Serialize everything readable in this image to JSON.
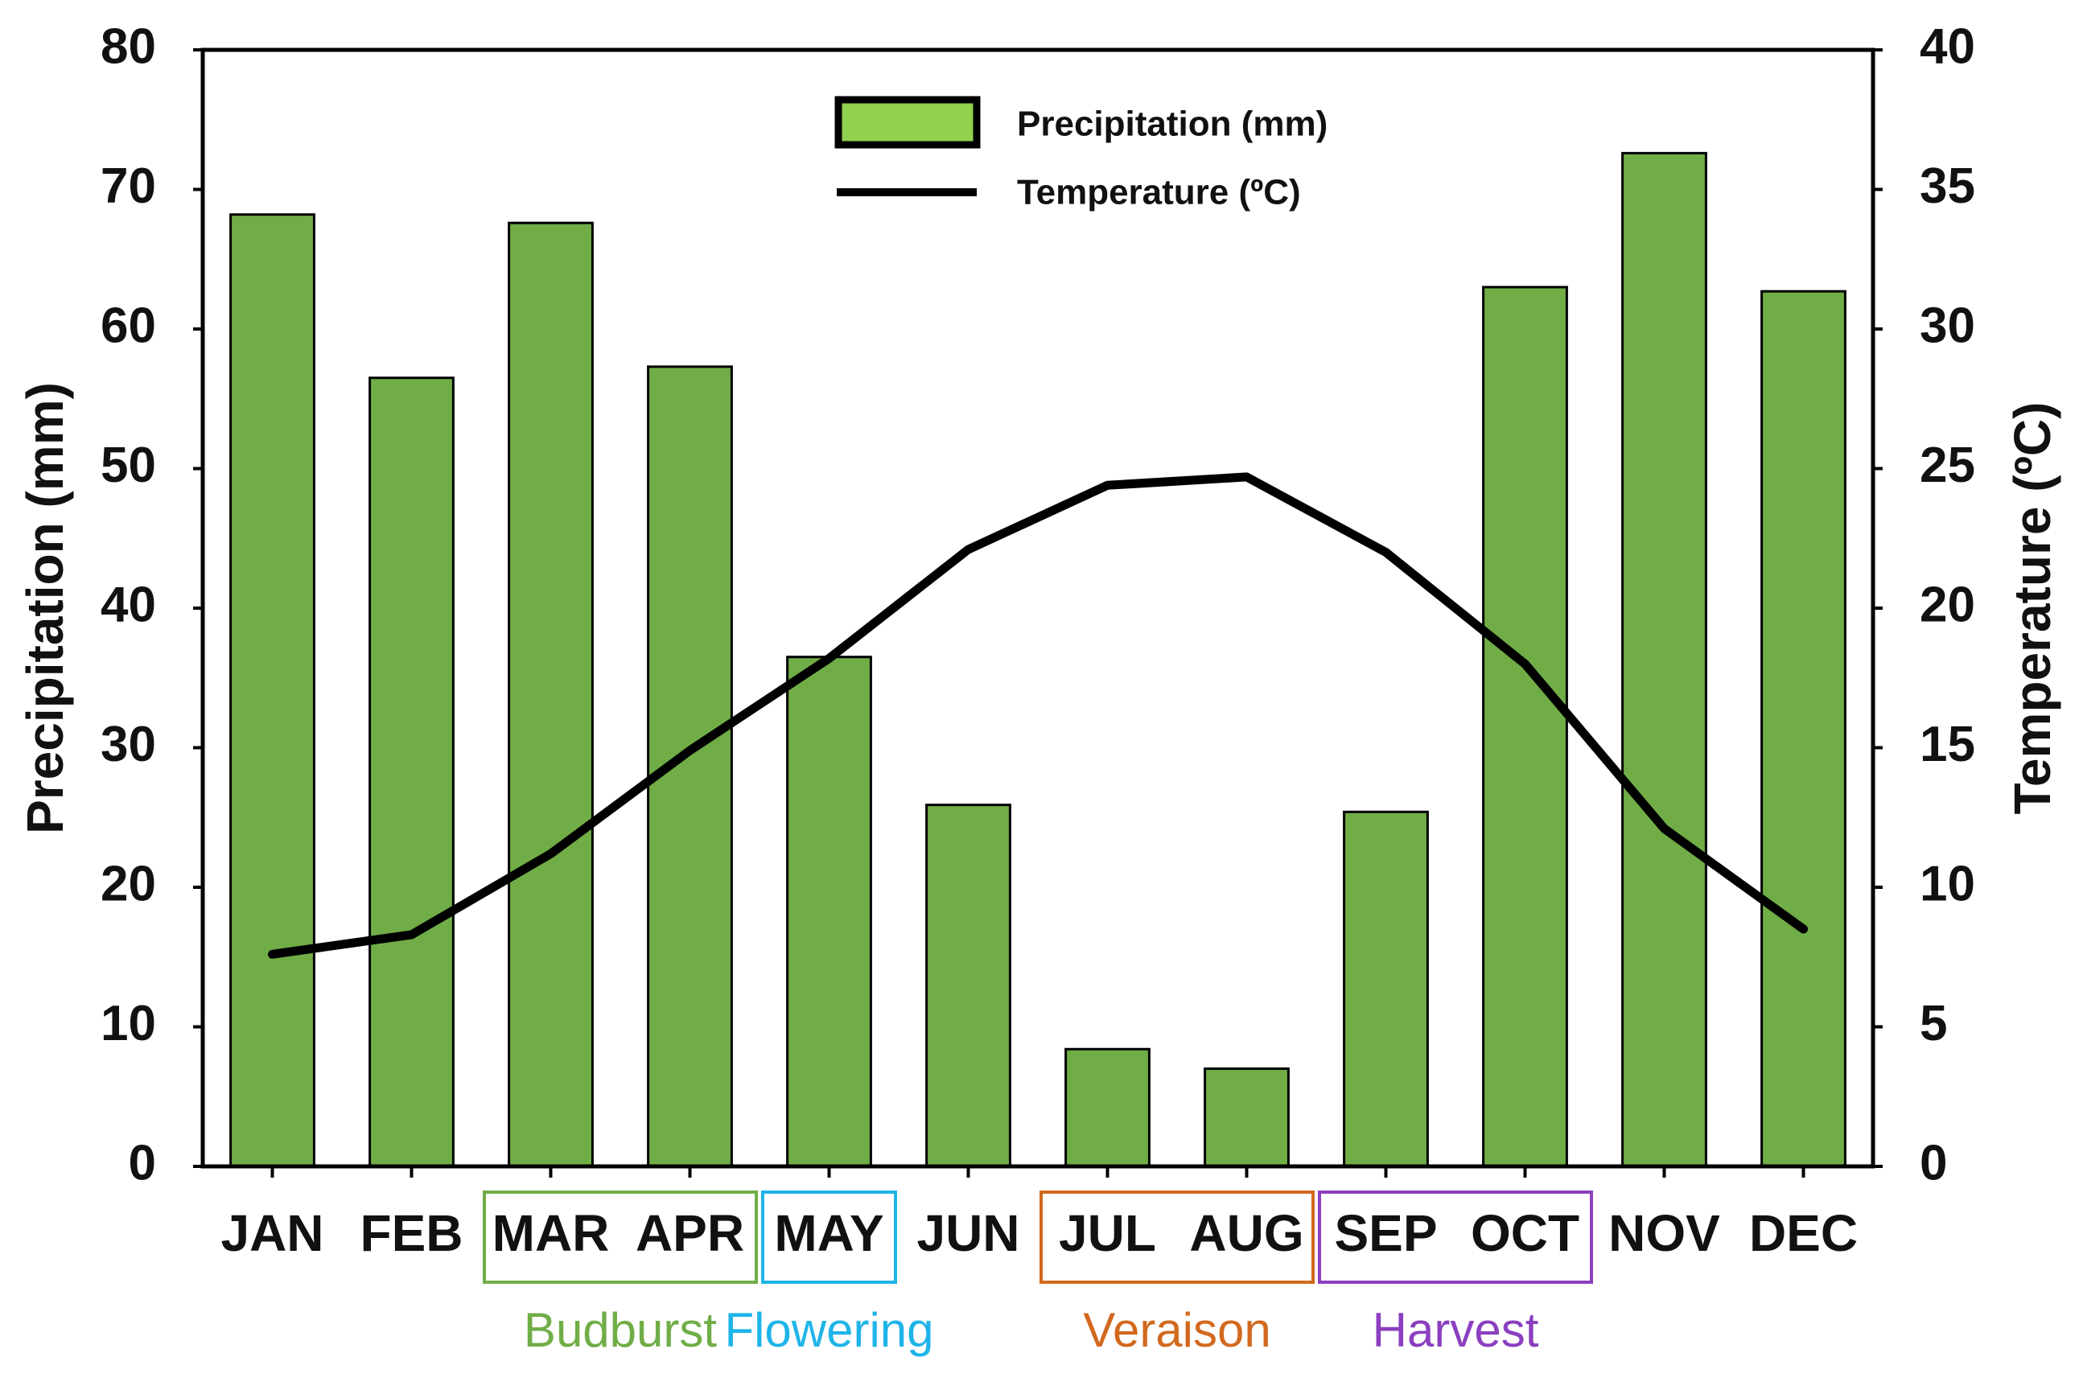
{
  "chart_data": {
    "type": "bar",
    "categories": [
      "JAN",
      "FEB",
      "MAR",
      "APR",
      "MAY",
      "JUN",
      "JUL",
      "AUG",
      "SEP",
      "OCT",
      "NOV",
      "DEC"
    ],
    "series": [
      {
        "name": "Precipitation (mm)",
        "type": "bar",
        "axis": "left",
        "color": "#70ad47",
        "values": [
          68.2,
          56.5,
          67.6,
          57.3,
          36.5,
          25.9,
          8.4,
          7.0,
          25.4,
          63.0,
          72.6,
          62.7
        ]
      },
      {
        "name": "Temperature (ºC)",
        "type": "line",
        "axis": "right",
        "color": "#000000",
        "values": [
          7.6,
          8.3,
          11.2,
          14.9,
          18.2,
          22.1,
          24.4,
          24.7,
          22.0,
          18.0,
          12.1,
          8.5
        ]
      }
    ],
    "ylabel": "Precipitation (mm)",
    "ylim": [
      0,
      80
    ],
    "yticks": [
      "0",
      "10",
      "20",
      "30",
      "40",
      "50",
      "60",
      "70",
      "80"
    ],
    "y2label": "Temperature (ºC)",
    "y2lim": [
      0,
      40
    ],
    "y2ticks": [
      "0",
      "5",
      "10",
      "15",
      "20",
      "25",
      "30",
      "35",
      "40"
    ],
    "grid": false,
    "legend_position": "top-center",
    "phases": [
      {
        "label": "Budburst",
        "months": [
          "MAR",
          "APR"
        ],
        "color": "#70ad47"
      },
      {
        "label": "Flowering",
        "months": [
          "MAY"
        ],
        "color": "#1fb4e8"
      },
      {
        "label": "Veraison",
        "months": [
          "JUL",
          "AUG"
        ],
        "color": "#d2691e"
      },
      {
        "label": "Harvest",
        "months": [
          "SEP",
          "OCT"
        ],
        "color": "#8b3fbf"
      }
    ]
  }
}
